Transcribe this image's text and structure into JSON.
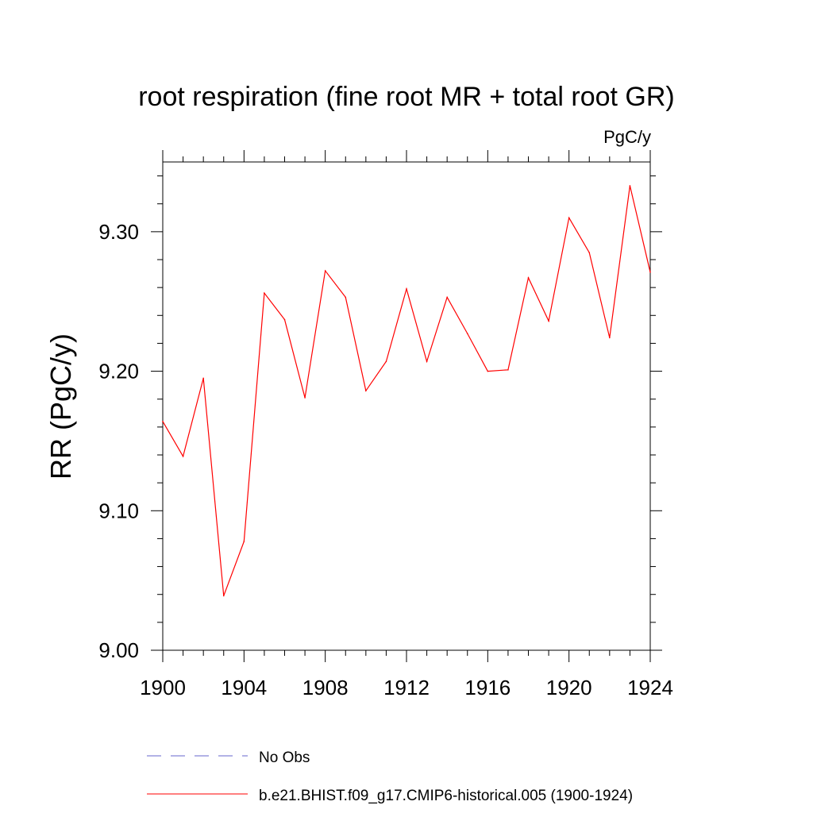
{
  "chart_data": {
    "type": "line",
    "title": "root respiration (fine root MR + total root GR)",
    "units": "PgC/y",
    "ylabel": "RR  (PgC/y)",
    "xlabel": "",
    "xlim": [
      1900,
      1924
    ],
    "ylim": [
      9.0,
      9.35
    ],
    "xticks": [
      1900,
      1904,
      1908,
      1912,
      1916,
      1920,
      1924
    ],
    "xtick_labels": [
      "1900",
      "1904",
      "1908",
      "1912",
      "1916",
      "1920",
      "1924"
    ],
    "yticks": [
      9.0,
      9.1,
      9.2,
      9.3
    ],
    "ytick_labels": [
      "9.00",
      "9.10",
      "9.20",
      "9.30"
    ],
    "grid": false,
    "series": [
      {
        "name": "b.e21.BHIST.f09_g17.CMIP6-historical.005 (1900-1924)",
        "color": "#ff0000",
        "style": "solid",
        "x": [
          1900,
          1901,
          1902,
          1903,
          1904,
          1905,
          1906,
          1907,
          1908,
          1909,
          1910,
          1911,
          1912,
          1913,
          1914,
          1915,
          1916,
          1917,
          1918,
          1919,
          1920,
          1921,
          1922,
          1923,
          1924
        ],
        "values": [
          9.164,
          9.139,
          9.195,
          9.039,
          9.078,
          9.256,
          9.237,
          9.181,
          9.272,
          9.253,
          9.186,
          9.207,
          9.259,
          9.207,
          9.253,
          9.227,
          9.2,
          9.201,
          9.267,
          9.236,
          9.31,
          9.285,
          9.224,
          9.333,
          9.271
        ]
      }
    ],
    "legend": [
      {
        "label": "No Obs",
        "color": "#6666cc",
        "style": "dashed"
      },
      {
        "label": "b.e21.BHIST.f09_g17.CMIP6-historical.005 (1900-1924)",
        "color": "#ff0000",
        "style": "solid"
      }
    ]
  }
}
